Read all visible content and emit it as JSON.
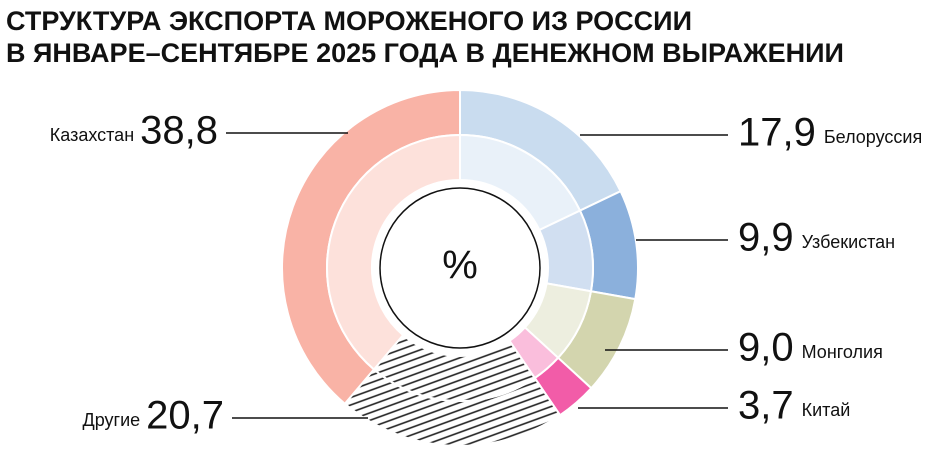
{
  "chart_data": {
    "type": "donut",
    "title": [
      "СТРУКТУРА ЭКСПОРТА МОРОЖЕНОГО ИЗ РОССИИ",
      "В ЯНВАРЕ–СЕНТЯБРЕ 2025 ГОДА В ДЕНЕЖНОМ ВЫРАЖЕНИИ"
    ],
    "center_label": "%",
    "categories": [
      "Белоруссия",
      "Узбекистан",
      "Монголия",
      "Китай",
      "Другие",
      "Казахстан"
    ],
    "values": [
      17.9,
      9.9,
      9.0,
      3.7,
      20.7,
      38.8
    ],
    "value_labels": [
      "17,9",
      "9,9",
      "9,0",
      "3,7",
      "20,7",
      "38,8"
    ],
    "colors": [
      "#c9dcef",
      "#8bb0dc",
      "#d3d5ae",
      "#f25ca8",
      "#222222",
      "#f9b3a6"
    ],
    "fills": [
      "solid",
      "solid",
      "solid",
      "solid",
      "hatch",
      "solid"
    ]
  }
}
